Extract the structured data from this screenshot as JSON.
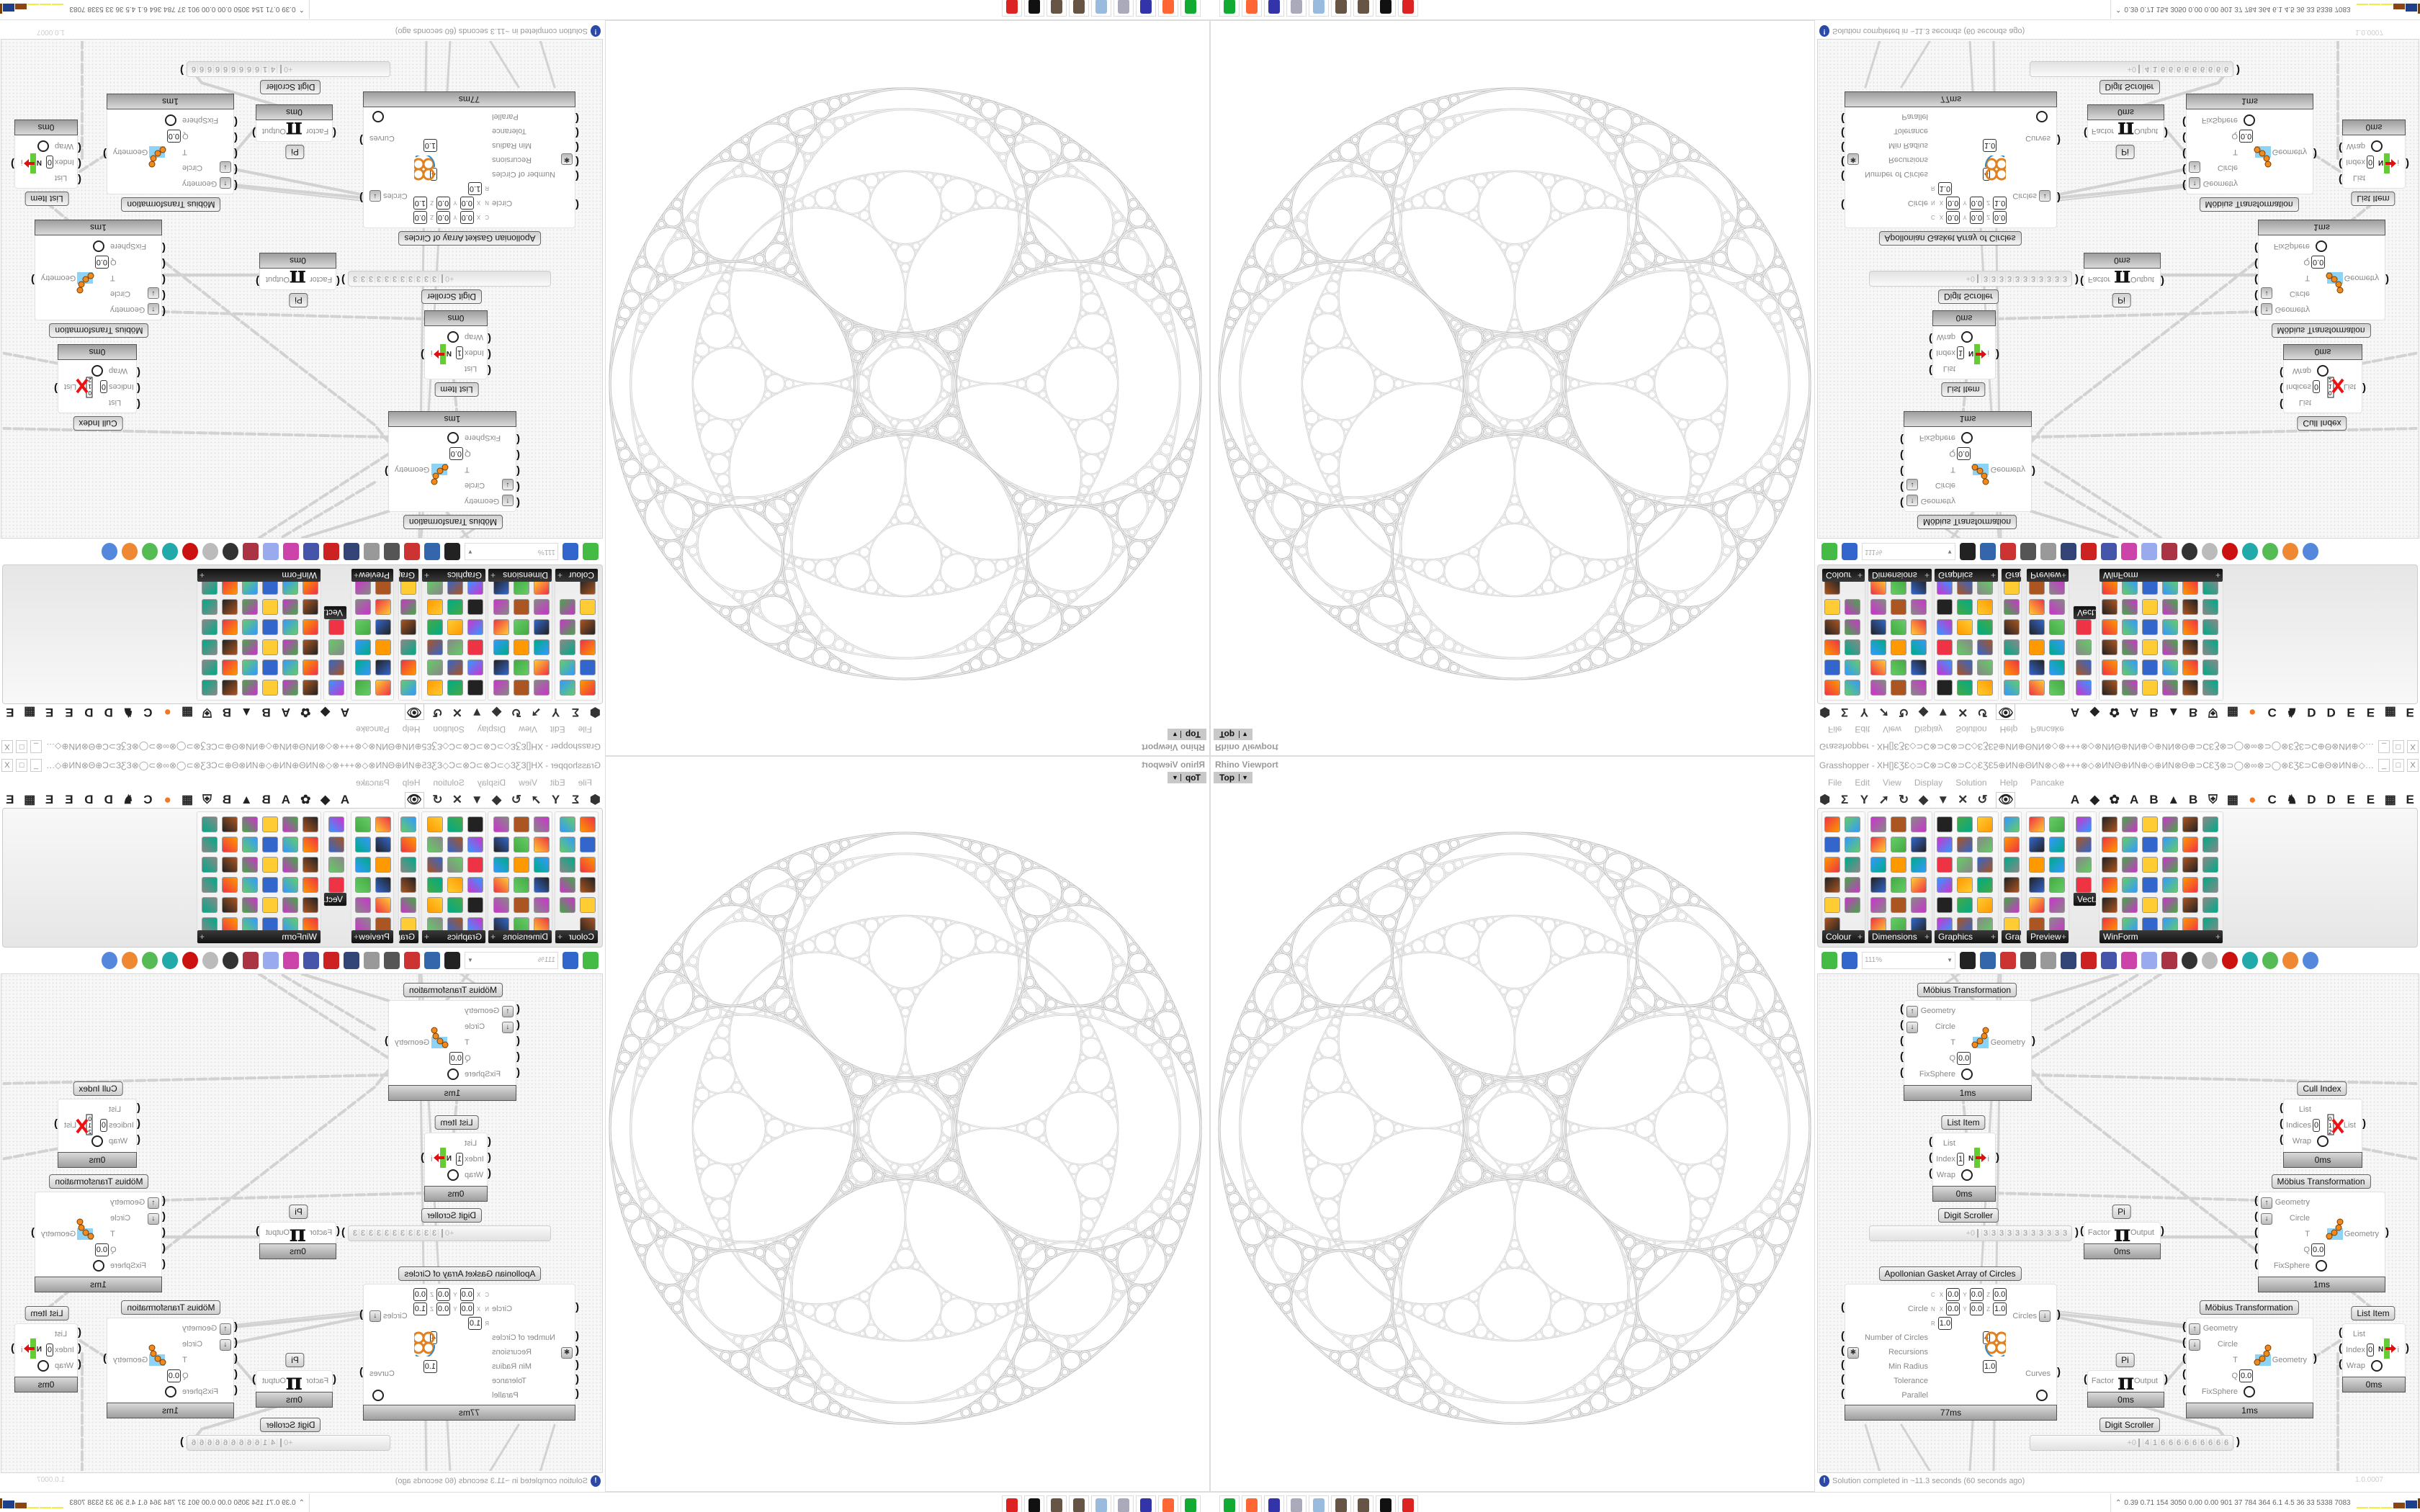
{
  "viewport": {
    "title": "Rhino Viewport",
    "view_tab": "Top"
  },
  "grasshopper": {
    "title": "Grasshopper - XH[]ƐƷƐ◇⊃C⊗⊃C⊗⊃C◇ƐƷƐ5⊕ИN⊕ΘИN⊗◇⊗+++⊗◇⊗ИNΘ⊕ИN⊕◇⊕ИN⊗Θ⊕⊃CƐƷ⊗⊃◯⊗∞⊗⊃◯⊗ƐƷƐ⊃C⊕Θ⊗ИN⊕◇⊕ƐƷ⊗ƐƷ⊞+ƐƷ+⊞ƐƷ⊗ƐƷ⊕◇⊕⊗⊃◯ƐƷ⊞⊕+⊃C",
    "window_buttons": [
      "_",
      "□",
      "X"
    ],
    "menu": [
      "File",
      "Edit",
      "View",
      "Display",
      "Solution",
      "Help",
      "Pancake"
    ],
    "tabs_left": [
      "⬢",
      "Σ",
      "Y",
      "➚",
      "↻",
      "◆",
      "▼",
      "✕",
      "↺",
      "👁"
    ],
    "tabs_right": [
      "A",
      "◆",
      "✿",
      "A",
      "B",
      "▲",
      "B",
      "⛨",
      "▦",
      "●",
      "C",
      "♞",
      "D",
      "D",
      "E",
      "E",
      "▦",
      "E"
    ],
    "ribbon_groups": [
      "Colour",
      "Dimensions",
      "Graphics",
      "Grap...",
      "Preview",
      "Vect...",
      "WinForm"
    ],
    "zoom": "111%",
    "status": "Solution completed in ~11.3 seconds (60 seconds ago)",
    "version": "1.0.0007",
    "accent": "#f07820"
  },
  "components": [
    {
      "title": "Möbius Transformation",
      "icon": "mobius-icon",
      "time": "1ms",
      "inputs": [
        {
          "label": "Geometry",
          "flag": "↑"
        },
        {
          "label": "Circle",
          "flag": "↓"
        },
        {
          "label": "T"
        },
        {
          "label": "Q",
          "value": "0.0"
        },
        {
          "label": "FixSphere",
          "toggle": true
        }
      ],
      "outputs": [
        "Geometry"
      ]
    },
    {
      "title": "List Item",
      "icon": "list-item-icon",
      "time": "0ms",
      "inputs": [
        {
          "label": "List"
        },
        {
          "label": "Index",
          "value": "1"
        },
        {
          "label": "Wrap",
          "toggle": true
        }
      ],
      "outputs": [
        "i"
      ]
    },
    {
      "title": "Cull Index",
      "icon": "cull-index-icon",
      "time": "0ms",
      "inputs": [
        {
          "label": "List"
        },
        {
          "label": "Indices",
          "value": "0"
        },
        {
          "label": "Wrap",
          "toggle": true
        }
      ],
      "outputs": [
        "List"
      ]
    },
    {
      "title": "Möbius Transformation",
      "icon": "mobius-icon",
      "time": "1ms",
      "inputs": [
        {
          "label": "Geometry",
          "flag": "↑"
        },
        {
          "label": "Circle",
          "flag": "↓"
        },
        {
          "label": "T"
        },
        {
          "label": "Q",
          "value": "0.0"
        },
        {
          "label": "FixSphere",
          "toggle": true
        }
      ],
      "outputs": [
        "Geometry"
      ]
    },
    {
      "title": "Pi",
      "icon": "pi-icon",
      "time": "0ms",
      "inputs": [
        {
          "label": "Factor"
        }
      ],
      "outputs": [
        "Output"
      ]
    },
    {
      "title": "Apollonian Gasket Array of Circles",
      "icon": "apollonian-icon",
      "time": "77ms",
      "inputs": [
        {
          "label": "",
          "tag": "C",
          "values": [
            {
              "k": "X",
              "v": "0.0"
            },
            {
              "k": "Y",
              "v": "0.0"
            },
            {
              "k": "Z",
              "v": "0.0"
            }
          ]
        },
        {
          "label": "Circle",
          "tag": "N",
          "values": [
            {
              "k": "X",
              "v": "0.0"
            },
            {
              "k": "Y",
              "v": "0.0"
            },
            {
              "k": "Z",
              "v": "1.0"
            }
          ]
        },
        {
          "label": "",
          "tag": "R",
          "values": [
            {
              "k": "",
              "v": "1.0"
            }
          ]
        },
        {
          "label": "Number of Circles",
          "value": "4"
        },
        {
          "label": "Recursions",
          "flag": "✱"
        },
        {
          "label": "Min Radius",
          "value": "1.0"
        },
        {
          "label": "Tolerance"
        },
        {
          "label": "Parallel",
          "toggle": true
        }
      ],
      "outputs": [
        "Circles",
        "Curves"
      ]
    },
    {
      "title": "Pi",
      "icon": "pi-icon",
      "time": "0ms",
      "inputs": [
        {
          "label": "Factor"
        }
      ],
      "outputs": [
        "Output"
      ]
    },
    {
      "title": "Möbius Transformation",
      "icon": "mobius-icon",
      "time": "1ms",
      "inputs": [
        {
          "label": "Geometry",
          "flag": "↑"
        },
        {
          "label": "Circle",
          "flag": "↓"
        },
        {
          "label": "T"
        },
        {
          "label": "Q",
          "value": "0.0"
        },
        {
          "label": "FixSphere",
          "toggle": true
        }
      ],
      "outputs": [
        "Geometry"
      ]
    },
    {
      "title": "List Item",
      "icon": "list-item-icon",
      "time": "0ms",
      "inputs": [
        {
          "label": "List"
        },
        {
          "label": "Index",
          "value": "0"
        },
        {
          "label": "Wrap",
          "toggle": true
        }
      ],
      "outputs": [
        "i"
      ]
    }
  ],
  "scrollers": [
    {
      "title": "Digit Scroller",
      "prefix": "+0",
      "digits": "33333333333"
    },
    {
      "title": "Digit Scroller",
      "prefix": "+0",
      "digits": "41666666666"
    }
  ],
  "taskbar": {
    "icons": [
      "green-app-icon",
      "firefox-icon",
      "floppy-64-icon",
      "scroll-icon",
      "notepad-icon",
      "cookie-icon",
      "cookie-icon",
      "wolf-icon",
      "red-skull-icon"
    ],
    "stats": "0.39 0.71 154 3050 0.00 0.00 901  37  784  364  6.1  4.5  36  33  5338 7083"
  }
}
